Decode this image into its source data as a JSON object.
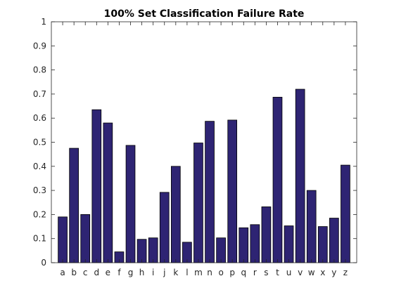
{
  "chart_data": {
    "type": "bar",
    "title": "100% Set Classification Failure Rate",
    "xlabel": "",
    "ylabel": "",
    "categories": [
      "a",
      "b",
      "c",
      "d",
      "e",
      "f",
      "g",
      "h",
      "i",
      "j",
      "k",
      "l",
      "m",
      "n",
      "o",
      "p",
      "q",
      "r",
      "s",
      "t",
      "u",
      "v",
      "w",
      "x",
      "y",
      "z"
    ],
    "values": [
      0.19,
      0.475,
      0.2,
      0.635,
      0.58,
      0.045,
      0.487,
      0.097,
      0.103,
      0.292,
      0.4,
      0.085,
      0.497,
      0.587,
      0.103,
      0.592,
      0.145,
      0.158,
      0.232,
      0.687,
      0.153,
      0.72,
      0.3,
      0.15,
      0.185,
      0.405
    ],
    "ylim": [
      0,
      1
    ],
    "yticks": [
      0,
      0.1,
      0.2,
      0.3,
      0.4,
      0.5,
      0.6,
      0.7,
      0.8,
      0.9,
      1
    ],
    "ytick_labels": [
      "0",
      "0.1",
      "0.2",
      "0.3",
      "0.4",
      "0.5",
      "0.6",
      "0.7",
      "0.8",
      "0.9",
      "1"
    ],
    "grid": false,
    "legend": "none",
    "colors": {
      "bar_fill": "#2e2473",
      "bar_edge": "#000000",
      "axis": "#262626"
    }
  }
}
